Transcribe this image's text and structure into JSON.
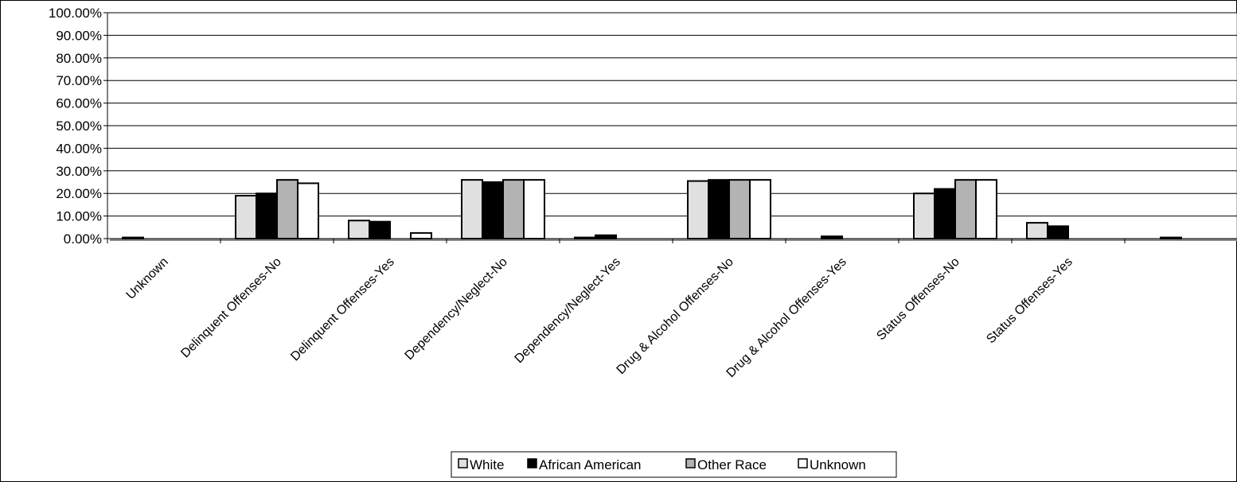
{
  "chart_data": {
    "type": "bar",
    "title": "",
    "xlabel": "",
    "ylabel": "",
    "ylim": [
      0,
      1
    ],
    "y_ticks": [
      "0.00%",
      "10.00%",
      "20.00%",
      "30.00%",
      "40.00%",
      "50.00%",
      "60.00%",
      "70.00%",
      "80.00%",
      "90.00%",
      "100.00%"
    ],
    "grid": true,
    "legend_position": "bottom",
    "categories": [
      "Unknown",
      "Delinquent Offenses-No",
      "Delinquent Offenses-Yes",
      "Dependency/Neglect-No",
      "Dependency/Neglect-Yes",
      "Drug & Alcohol Offenses-No",
      "Drug & Alcohol Offenses-Yes",
      "Status Offenses-No",
      "Status Offenses-Yes",
      ""
    ],
    "series": [
      {
        "name": "White",
        "color": "#e0e0e0",
        "values": [
          0.005,
          0.19,
          0.08,
          0.26,
          0.005,
          0.255,
          0.0,
          0.2,
          0.07,
          0.0
        ]
      },
      {
        "name": "African American",
        "color": "#000000",
        "values": [
          0.0,
          0.2,
          0.075,
          0.25,
          0.015,
          0.26,
          0.01,
          0.22,
          0.055,
          0.005
        ]
      },
      {
        "name": "Other Race",
        "color": "#b3b3b3",
        "values": [
          0.0,
          0.26,
          0.0,
          0.26,
          0.0,
          0.26,
          0.0,
          0.26,
          0.0,
          0.0
        ]
      },
      {
        "name": "Unknown",
        "color": "#ffffff",
        "values": [
          0.0,
          0.245,
          0.025,
          0.26,
          0.0,
          0.26,
          0.0,
          0.26,
          0.0,
          0.0
        ]
      }
    ]
  }
}
